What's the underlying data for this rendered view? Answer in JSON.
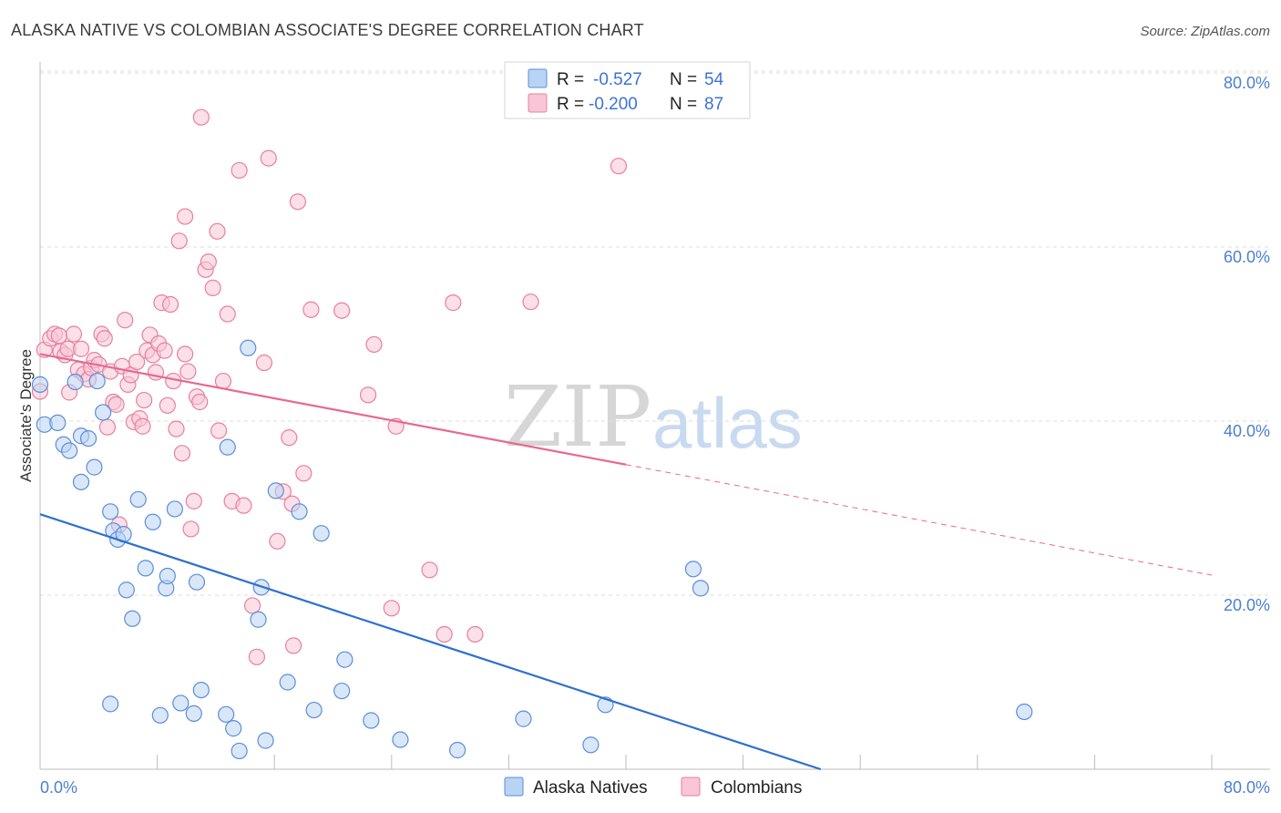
{
  "title": "ALASKA NATIVE VS COLOMBIAN ASSOCIATE'S DEGREE CORRELATION CHART",
  "source": "Source: ZipAtlas.com",
  "watermark": {
    "zip": "ZIP",
    "atlas": "atlas"
  },
  "legend_box": {
    "row1": {
      "r_label": "R =",
      "r_value": "-0.527",
      "n_label": "N =",
      "n_value": "54"
    },
    "row2": {
      "r_label": "R =",
      "r_value": "-0.200",
      "n_label": "N =",
      "n_value": "87"
    }
  },
  "colors": {
    "blue_fill": "#b9d3f4",
    "blue_stroke": "#5b8ed8",
    "blue_line": "#2f6fd0",
    "pink_fill": "#f8c6d6",
    "pink_stroke": "#e87fa0",
    "pink_line": "#e8688f",
    "grid": "#dddddd",
    "axis_text": "#4a7fd4"
  },
  "chart_data": {
    "type": "scatter",
    "title": "ALASKA NATIVE VS COLOMBIAN ASSOCIATE'S DEGREE CORRELATION CHART",
    "xlabel": "",
    "ylabel": "Associate's Degree",
    "xlim": [
      0,
      80
    ],
    "ylim": [
      0,
      80
    ],
    "x_tick_labels": [
      "0.0%",
      "80.0%"
    ],
    "y_tick_labels": [
      "20.0%",
      "40.0%",
      "60.0%",
      "80.0%"
    ],
    "y_ticks": [
      20,
      40,
      60,
      80
    ],
    "grid": true,
    "legend_position": "top-center",
    "series": [
      {
        "name": "Alaska Natives",
        "r": -0.527,
        "n": 54,
        "trend": {
          "x": [
            0,
            53.3
          ],
          "y": [
            29.3,
            0
          ]
        },
        "points": [
          [
            0.0,
            44.2
          ],
          [
            0.3,
            39.6
          ],
          [
            1.2,
            39.8
          ],
          [
            1.6,
            37.3
          ],
          [
            2.4,
            44.5
          ],
          [
            2.0,
            36.6
          ],
          [
            2.8,
            38.3
          ],
          [
            3.3,
            38.0
          ],
          [
            3.7,
            34.7
          ],
          [
            2.8,
            33.0
          ],
          [
            3.9,
            44.6
          ],
          [
            4.3,
            41.0
          ],
          [
            4.8,
            29.6
          ],
          [
            5.0,
            27.4
          ],
          [
            5.3,
            26.4
          ],
          [
            5.7,
            27.0
          ],
          [
            5.9,
            20.6
          ],
          [
            6.3,
            17.3
          ],
          [
            6.7,
            31.0
          ],
          [
            7.2,
            23.1
          ],
          [
            7.7,
            28.4
          ],
          [
            8.6,
            20.8
          ],
          [
            8.7,
            22.2
          ],
          [
            9.2,
            29.9
          ],
          [
            10.7,
            21.5
          ],
          [
            12.8,
            37.0
          ],
          [
            14.2,
            48.4
          ],
          [
            14.9,
            17.2
          ],
          [
            15.1,
            20.9
          ],
          [
            16.1,
            32.0
          ],
          [
            17.7,
            29.6
          ],
          [
            19.2,
            27.1
          ],
          [
            20.8,
            12.6
          ],
          [
            4.8,
            7.5
          ],
          [
            8.2,
            6.2
          ],
          [
            9.6,
            7.6
          ],
          [
            10.5,
            6.4
          ],
          [
            11.0,
            9.1
          ],
          [
            12.7,
            6.3
          ],
          [
            13.2,
            4.7
          ],
          [
            13.6,
            2.1
          ],
          [
            15.4,
            3.3
          ],
          [
            16.9,
            10.0
          ],
          [
            18.7,
            6.8
          ],
          [
            20.6,
            9.0
          ],
          [
            22.6,
            5.6
          ],
          [
            24.6,
            3.4
          ],
          [
            28.5,
            2.2
          ],
          [
            33.0,
            5.8
          ],
          [
            37.6,
            2.8
          ],
          [
            38.6,
            7.4
          ],
          [
            44.6,
            23.0
          ],
          [
            45.1,
            20.8
          ],
          [
            67.2,
            6.6
          ]
        ]
      },
      {
        "name": "Colombians",
        "r": -0.2,
        "n": 87,
        "trend": {
          "x": [
            0,
            80
          ],
          "y": [
            47.7,
            22.3
          ]
        },
        "points": [
          [
            0.0,
            43.4
          ],
          [
            0.3,
            48.2
          ],
          [
            0.7,
            49.5
          ],
          [
            1.0,
            50.0
          ],
          [
            1.3,
            49.8
          ],
          [
            1.4,
            48.0
          ],
          [
            1.7,
            47.6
          ],
          [
            1.9,
            48.3
          ],
          [
            2.0,
            43.3
          ],
          [
            2.3,
            50.0
          ],
          [
            2.6,
            45.9
          ],
          [
            2.8,
            48.3
          ],
          [
            3.0,
            45.4
          ],
          [
            3.3,
            44.8
          ],
          [
            3.5,
            46.1
          ],
          [
            3.7,
            47.0
          ],
          [
            4.0,
            46.5
          ],
          [
            4.2,
            50.0
          ],
          [
            4.4,
            49.5
          ],
          [
            4.6,
            39.3
          ],
          [
            4.8,
            45.7
          ],
          [
            5.0,
            42.2
          ],
          [
            5.2,
            41.9
          ],
          [
            5.4,
            28.1
          ],
          [
            5.6,
            46.3
          ],
          [
            5.8,
            51.6
          ],
          [
            6.0,
            44.2
          ],
          [
            6.2,
            45.3
          ],
          [
            6.4,
            39.9
          ],
          [
            6.6,
            46.8
          ],
          [
            6.8,
            40.3
          ],
          [
            7.0,
            39.4
          ],
          [
            7.1,
            42.4
          ],
          [
            7.3,
            48.1
          ],
          [
            7.5,
            49.9
          ],
          [
            7.7,
            47.6
          ],
          [
            7.9,
            45.6
          ],
          [
            8.1,
            48.9
          ],
          [
            8.3,
            53.6
          ],
          [
            8.5,
            48.1
          ],
          [
            8.7,
            41.8
          ],
          [
            8.9,
            53.4
          ],
          [
            9.1,
            44.6
          ],
          [
            9.3,
            39.1
          ],
          [
            9.5,
            60.7
          ],
          [
            9.7,
            36.3
          ],
          [
            9.9,
            63.5
          ],
          [
            9.9,
            47.7
          ],
          [
            10.1,
            45.7
          ],
          [
            10.3,
            27.6
          ],
          [
            10.5,
            30.8
          ],
          [
            10.7,
            42.8
          ],
          [
            10.9,
            42.2
          ],
          [
            11.0,
            74.9
          ],
          [
            11.3,
            57.4
          ],
          [
            11.5,
            58.3
          ],
          [
            11.8,
            55.3
          ],
          [
            12.1,
            61.8
          ],
          [
            12.2,
            38.9
          ],
          [
            12.5,
            44.6
          ],
          [
            12.8,
            52.3
          ],
          [
            13.1,
            30.8
          ],
          [
            13.6,
            68.8
          ],
          [
            13.9,
            30.3
          ],
          [
            14.5,
            18.8
          ],
          [
            14.8,
            12.9
          ],
          [
            15.3,
            46.7
          ],
          [
            15.6,
            70.2
          ],
          [
            16.2,
            26.2
          ],
          [
            16.6,
            31.9
          ],
          [
            17.0,
            38.1
          ],
          [
            17.3,
            14.2
          ],
          [
            17.6,
            65.2
          ],
          [
            18.0,
            34.0
          ],
          [
            18.5,
            52.8
          ],
          [
            20.6,
            52.7
          ],
          [
            22.4,
            43.0
          ],
          [
            22.8,
            48.8
          ],
          [
            24.0,
            18.5
          ],
          [
            24.3,
            39.4
          ],
          [
            26.6,
            22.9
          ],
          [
            27.6,
            15.5
          ],
          [
            28.2,
            53.6
          ],
          [
            29.7,
            15.5
          ],
          [
            33.5,
            53.7
          ],
          [
            39.5,
            69.3
          ],
          [
            17.2,
            30.5
          ]
        ]
      }
    ]
  },
  "bottom_legend": {
    "series1": "Alaska Natives",
    "series2": "Colombians"
  }
}
